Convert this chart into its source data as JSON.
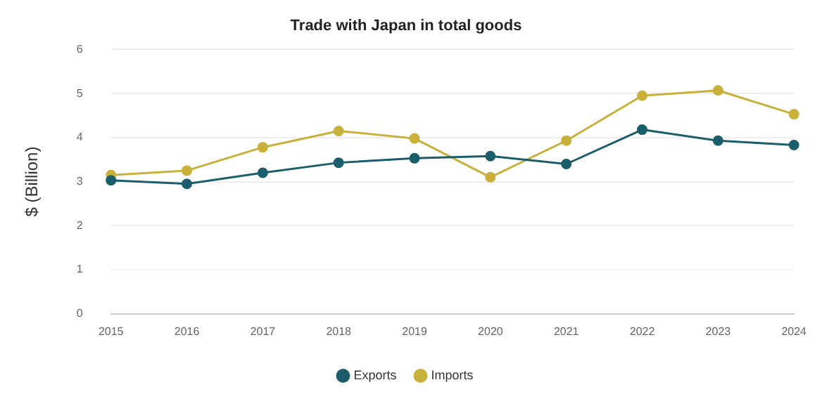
{
  "chart_data": {
    "type": "line",
    "title": "Trade with Japan in total goods",
    "ylabel": "$ (Billion)",
    "categories": [
      "2015",
      "2016",
      "2017",
      "2018",
      "2019",
      "2020",
      "2021",
      "2022",
      "2023",
      "2024"
    ],
    "series": [
      {
        "name": "Exports",
        "color": "#1b5e6b",
        "values": [
          3.03,
          2.95,
          3.2,
          3.43,
          3.53,
          3.58,
          3.4,
          4.18,
          3.93,
          3.83
        ]
      },
      {
        "name": "Imports",
        "color": "#c9b03a",
        "values": [
          3.15,
          3.25,
          3.78,
          4.15,
          3.98,
          3.1,
          3.93,
          4.95,
          5.07,
          4.53
        ]
      }
    ],
    "ylim": [
      0,
      6
    ],
    "yticks": [
      0,
      1,
      2,
      3,
      4,
      5,
      6
    ],
    "grid": "y",
    "legend": "bottom",
    "marker": "circle",
    "line_style": "solid"
  }
}
